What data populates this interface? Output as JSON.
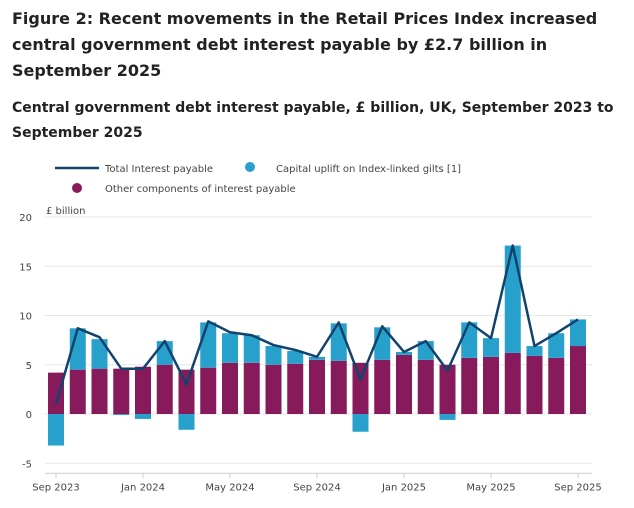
{
  "title": "Figure 2: Recent movements in the Retail Prices Index increased central government debt interest payable by £2.7 billion in September 2025",
  "subtitle": "Central government debt interest payable, £ billion, UK, September 2023 to September 2025",
  "chart_data": {
    "type": "bar",
    "stacked": true,
    "ylabel": "£ billion",
    "ylim": [
      -5,
      20
    ],
    "yticks": [
      "20",
      "15",
      "10",
      "5",
      "0",
      "-5"
    ],
    "grid": true,
    "legend_placement": "top-left",
    "x_tick_labels": [
      "Sep 2023",
      "Jan 2024",
      "May 2024",
      "Sep 2024",
      "Jan 2025",
      "May 2025",
      "Sep 2025"
    ],
    "categories": [
      "Sep 2023",
      "Oct 2023",
      "Nov 2023",
      "Dec 2023",
      "Jan 2024",
      "Feb 2024",
      "Mar 2024",
      "Apr 2024",
      "May 2024",
      "Jun 2024",
      "Jul 2024",
      "Aug 2024",
      "Sep 2024",
      "Oct 2024",
      "Nov 2024",
      "Dec 2024",
      "Jan 2025",
      "Feb 2025",
      "Mar 2025",
      "Apr 2025",
      "May 2025",
      "Jun 2025",
      "Jul 2025",
      "Aug 2025",
      "Sep 2025"
    ],
    "series": [
      {
        "name": "Other components of interest payable",
        "kind": "bar",
        "color": "#871a5b",
        "values": [
          4.2,
          4.5,
          4.6,
          4.6,
          4.8,
          5.0,
          4.5,
          4.7,
          5.2,
          5.2,
          5.0,
          5.1,
          5.5,
          5.4,
          5.2,
          5.5,
          6.0,
          5.5,
          5.0,
          5.7,
          5.8,
          6.2,
          5.9,
          5.7,
          6.9
        ]
      },
      {
        "name": "Capital uplift on Index-linked gilts [1]",
        "kind": "bar",
        "color": "#27a0cc",
        "values": [
          -3.2,
          4.2,
          3.0,
          -0.1,
          -0.5,
          2.4,
          -1.6,
          4.6,
          3.0,
          2.8,
          1.9,
          1.3,
          0.3,
          3.8,
          -1.8,
          3.3,
          0.3,
          1.9,
          -0.6,
          3.6,
          1.9,
          10.9,
          1.0,
          2.5,
          2.7
        ]
      },
      {
        "name": "Total Interest payable",
        "kind": "line",
        "color": "#12436d",
        "values": [
          1.0,
          8.7,
          7.8,
          4.6,
          4.6,
          7.4,
          3.0,
          9.4,
          8.3,
          8.0,
          7.0,
          6.5,
          5.8,
          9.3,
          3.5,
          8.9,
          6.3,
          7.4,
          4.4,
          9.3,
          7.7,
          17.1,
          6.9,
          8.2,
          9.6
        ]
      }
    ]
  }
}
